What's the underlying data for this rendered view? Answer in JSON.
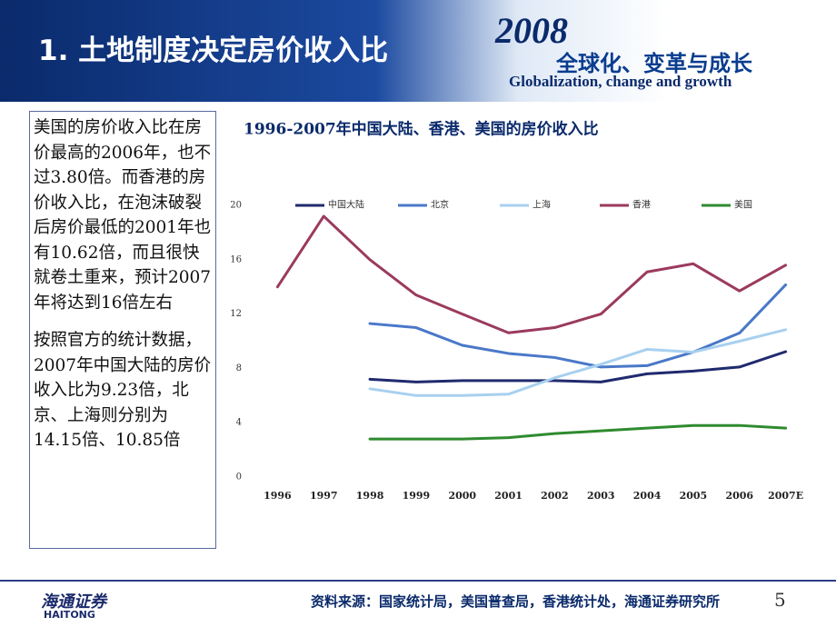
{
  "header": {
    "title": "1. 土地制度决定房价收入比",
    "logo_year": "2008",
    "logo_cn": "全球化、变革与成长",
    "logo_en": "Globalization, change and growth"
  },
  "text_box": {
    "paragraphs": [
      "美国的房价收入比在房价最高的2006年，也不过3.80倍。而香港的房价收入比，在泡沫破裂后房价最低的2001年也有10.62倍，而且很快就卷土重来，预计2007年将达到16倍左右",
      "按照官方的统计数据，2007年中国大陆的房价收入比为9.23倍，北京、上海则分别为14.15倍、10.85倍"
    ]
  },
  "chart_data": {
    "type": "line",
    "title": "1996-2007年中国大陆、香港、美国的房价收入比",
    "categories": [
      "1996",
      "1997",
      "1998",
      "1999",
      "2000",
      "2001",
      "2002",
      "2003",
      "2004",
      "2005",
      "2006",
      "2007E"
    ],
    "series": [
      {
        "name": "中国大陆",
        "color": "#1f2a6e",
        "values": [
          null,
          null,
          7.2,
          7.0,
          7.1,
          7.1,
          7.1,
          7.0,
          7.6,
          7.8,
          8.1,
          9.23
        ]
      },
      {
        "name": "北京",
        "color": "#4a78c8",
        "values": [
          null,
          null,
          11.3,
          11.0,
          9.7,
          9.1,
          8.8,
          8.1,
          8.2,
          9.2,
          10.6,
          14.15
        ]
      },
      {
        "name": "上海",
        "color": "#a8d0ef",
        "values": [
          null,
          null,
          6.5,
          6.0,
          6.0,
          6.1,
          7.3,
          8.3,
          9.4,
          9.2,
          10.0,
          10.85
        ]
      },
      {
        "name": "香港",
        "color": "#9b3a5e",
        "values": [
          14.0,
          19.2,
          16.0,
          13.4,
          12.0,
          10.62,
          11.0,
          12.0,
          15.1,
          15.7,
          13.7,
          15.6
        ]
      },
      {
        "name": "美国",
        "color": "#2e8b2e",
        "values": [
          null,
          null,
          2.8,
          2.8,
          2.8,
          2.9,
          3.2,
          3.4,
          3.6,
          3.8,
          3.8,
          3.6
        ]
      }
    ],
    "ylim": [
      0,
      20
    ],
    "yticks": [
      0,
      4,
      8,
      12,
      16,
      20
    ],
    "grid": false,
    "legend": "top"
  },
  "footer": {
    "company_cn": "海通证券",
    "company_en": "HAITONG",
    "source": "资料来源：国家统计局，美国普查局，香港统计处，海通证券研究所",
    "page": "5"
  }
}
